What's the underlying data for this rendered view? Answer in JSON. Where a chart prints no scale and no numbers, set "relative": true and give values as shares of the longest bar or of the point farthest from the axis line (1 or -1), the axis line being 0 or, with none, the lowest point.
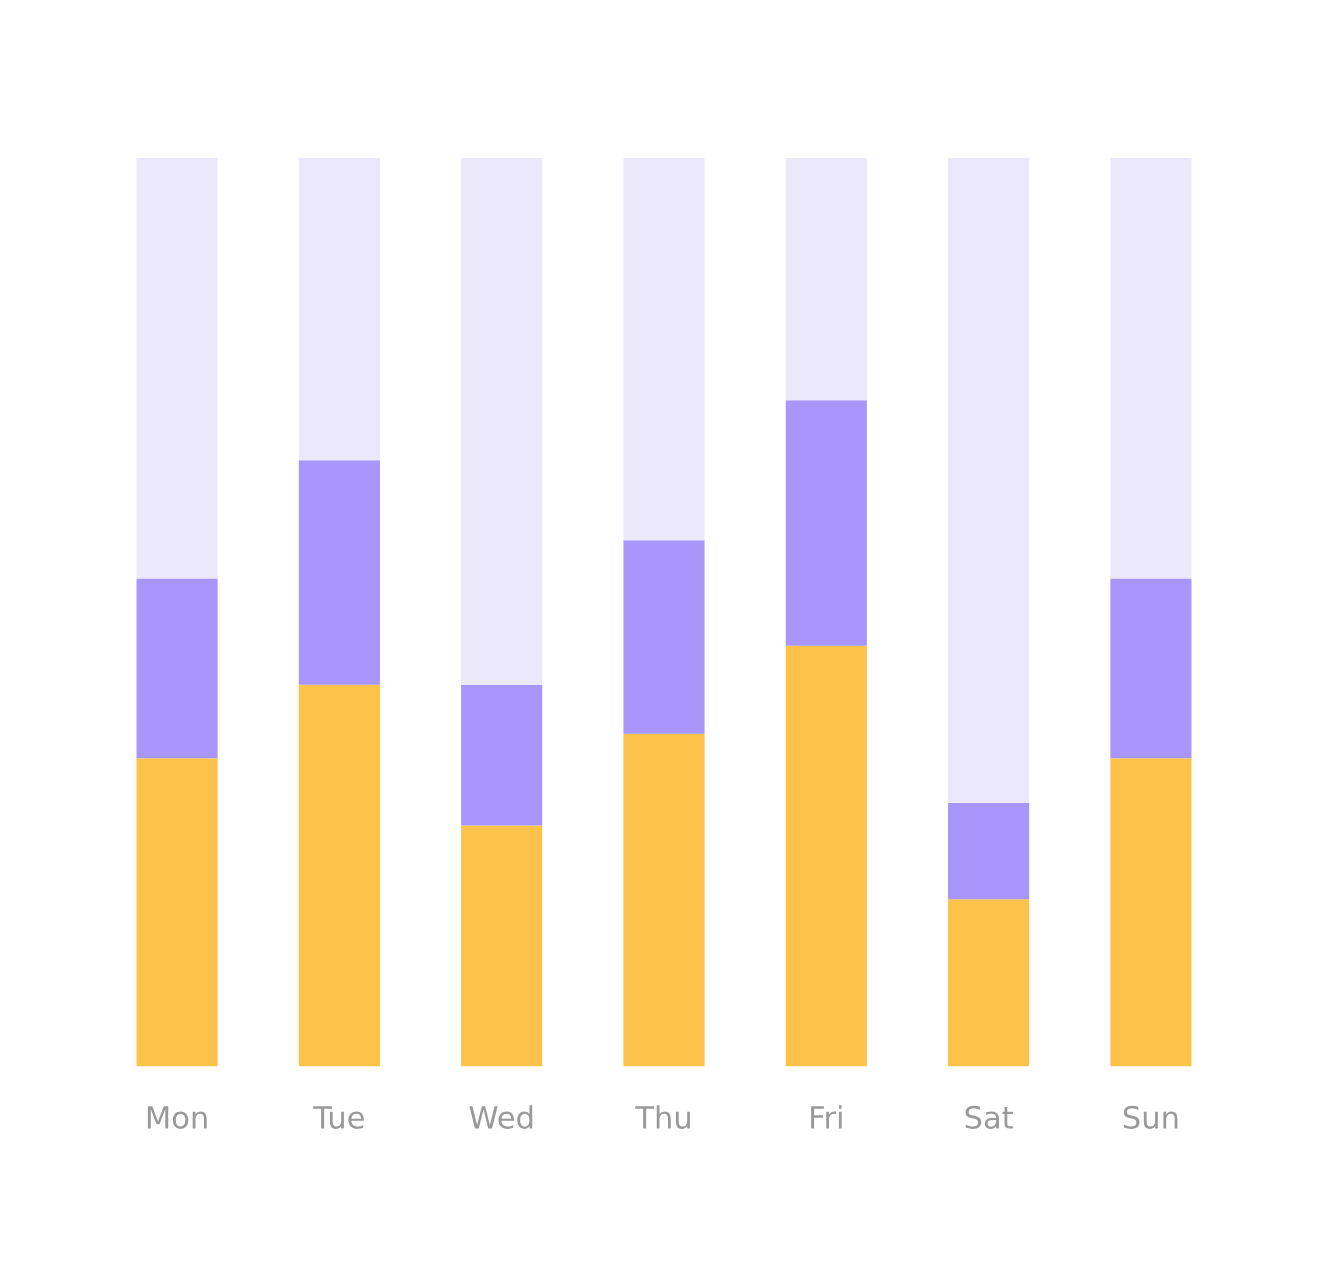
{
  "chart_data": {
    "type": "bar",
    "relative": true,
    "stacked": true,
    "categories": [
      "Mon",
      "Tue",
      "Wed",
      "Thu",
      "Fri",
      "Sat",
      "Sun"
    ],
    "series": [
      {
        "color": "#fdc24a",
        "values": [
          0.339,
          0.42,
          0.265,
          0.366,
          0.463,
          0.184,
          0.339
        ]
      },
      {
        "color": "#a996fb",
        "values": [
          0.198,
          0.247,
          0.155,
          0.213,
          0.27,
          0.106,
          0.198
        ]
      },
      {
        "color": "#ebe8fc",
        "values": [
          0.463,
          0.333,
          0.58,
          0.421,
          0.267,
          0.71,
          0.463
        ]
      }
    ],
    "grid": false,
    "legend": false
  }
}
